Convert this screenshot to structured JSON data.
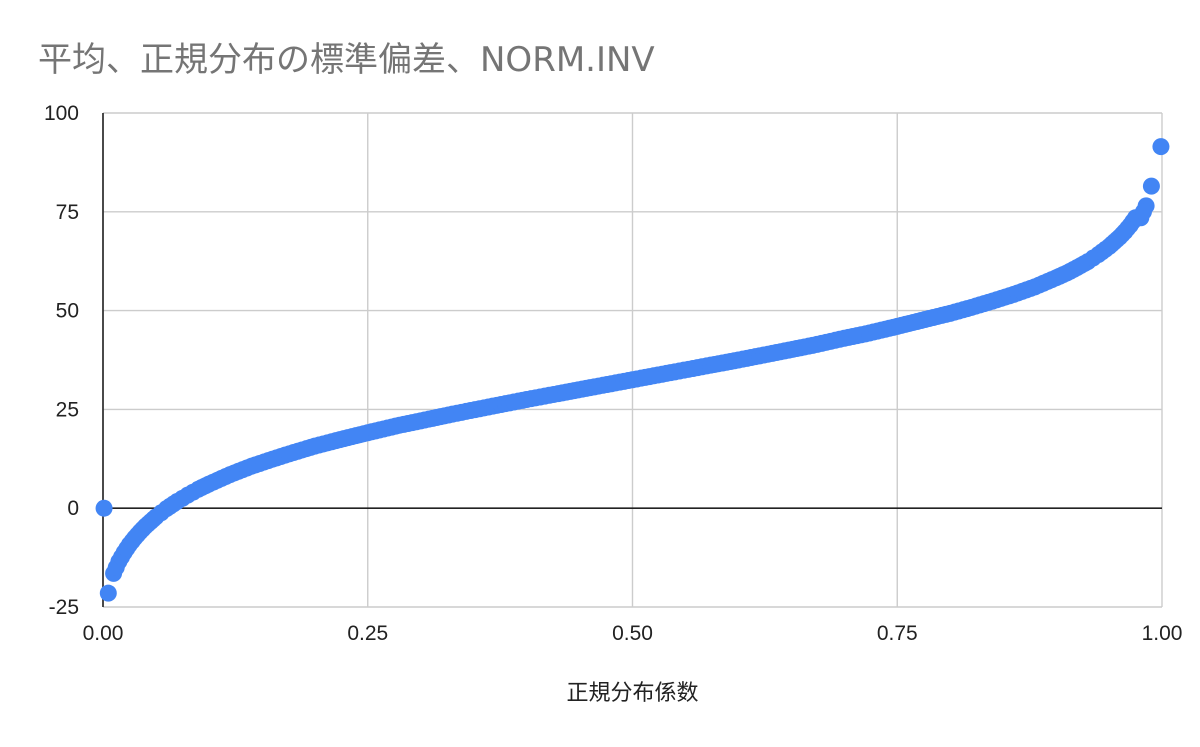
{
  "chart_data": {
    "type": "scatter",
    "title": "平均、正規分布の標準偏差、NORM.INV",
    "xlabel": "正規分布係数",
    "ylabel": "",
    "xlim": [
      0,
      1
    ],
    "ylim": [
      -25,
      100
    ],
    "x_ticks": [
      "0.00",
      "0.25",
      "0.50",
      "0.75",
      "1.00"
    ],
    "y_ticks": [
      "-25",
      "0",
      "25",
      "50",
      "75",
      "100"
    ],
    "grid": true,
    "legend": "none",
    "series": [
      {
        "color": "#4285F4",
        "points": [
          [
            0.001,
            0
          ],
          [
            0.005,
            -21.5
          ],
          [
            0.01,
            -16.5
          ],
          [
            0.015,
            -13.5
          ],
          [
            0.02,
            -11.2
          ],
          [
            0.025,
            -9.2
          ],
          [
            0.03,
            -7.5
          ],
          [
            0.035,
            -6.0
          ],
          [
            0.04,
            -4.6
          ],
          [
            0.045,
            -3.4
          ],
          [
            0.05,
            -2.2
          ],
          [
            0.06,
            -0.1
          ],
          [
            0.07,
            1.7
          ],
          [
            0.08,
            3.3
          ],
          [
            0.09,
            4.8
          ],
          [
            0.1,
            6.1
          ],
          [
            0.12,
            8.5
          ],
          [
            0.14,
            10.6
          ],
          [
            0.16,
            12.4
          ],
          [
            0.18,
            14.1
          ],
          [
            0.2,
            15.7
          ],
          [
            0.22,
            17.1
          ],
          [
            0.25,
            19.1
          ],
          [
            0.28,
            21.0
          ],
          [
            0.3,
            22.1
          ],
          [
            0.33,
            23.8
          ],
          [
            0.36,
            25.4
          ],
          [
            0.4,
            27.5
          ],
          [
            0.43,
            29.0
          ],
          [
            0.46,
            30.5
          ],
          [
            0.5,
            32.5
          ],
          [
            0.54,
            34.5
          ],
          [
            0.57,
            36.0
          ],
          [
            0.6,
            37.5
          ],
          [
            0.64,
            39.6
          ],
          [
            0.67,
            41.2
          ],
          [
            0.7,
            43.0
          ],
          [
            0.72,
            44.1
          ],
          [
            0.75,
            46.0
          ],
          [
            0.78,
            48.0
          ],
          [
            0.8,
            49.3
          ],
          [
            0.82,
            50.8
          ],
          [
            0.84,
            52.4
          ],
          [
            0.86,
            54.1
          ],
          [
            0.88,
            56.0
          ],
          [
            0.9,
            58.3
          ],
          [
            0.91,
            59.5
          ],
          [
            0.92,
            60.9
          ],
          [
            0.93,
            62.4
          ],
          [
            0.94,
            64.2
          ],
          [
            0.95,
            66.2
          ],
          [
            0.955,
            67.4
          ],
          [
            0.96,
            68.6
          ],
          [
            0.965,
            70.0
          ],
          [
            0.97,
            71.6
          ],
          [
            0.975,
            73.5
          ],
          [
            0.98,
            73.5
          ],
          [
            0.985,
            76.5
          ],
          [
            0.99,
            81.5
          ],
          [
            0.999,
            91.5
          ]
        ]
      }
    ]
  }
}
